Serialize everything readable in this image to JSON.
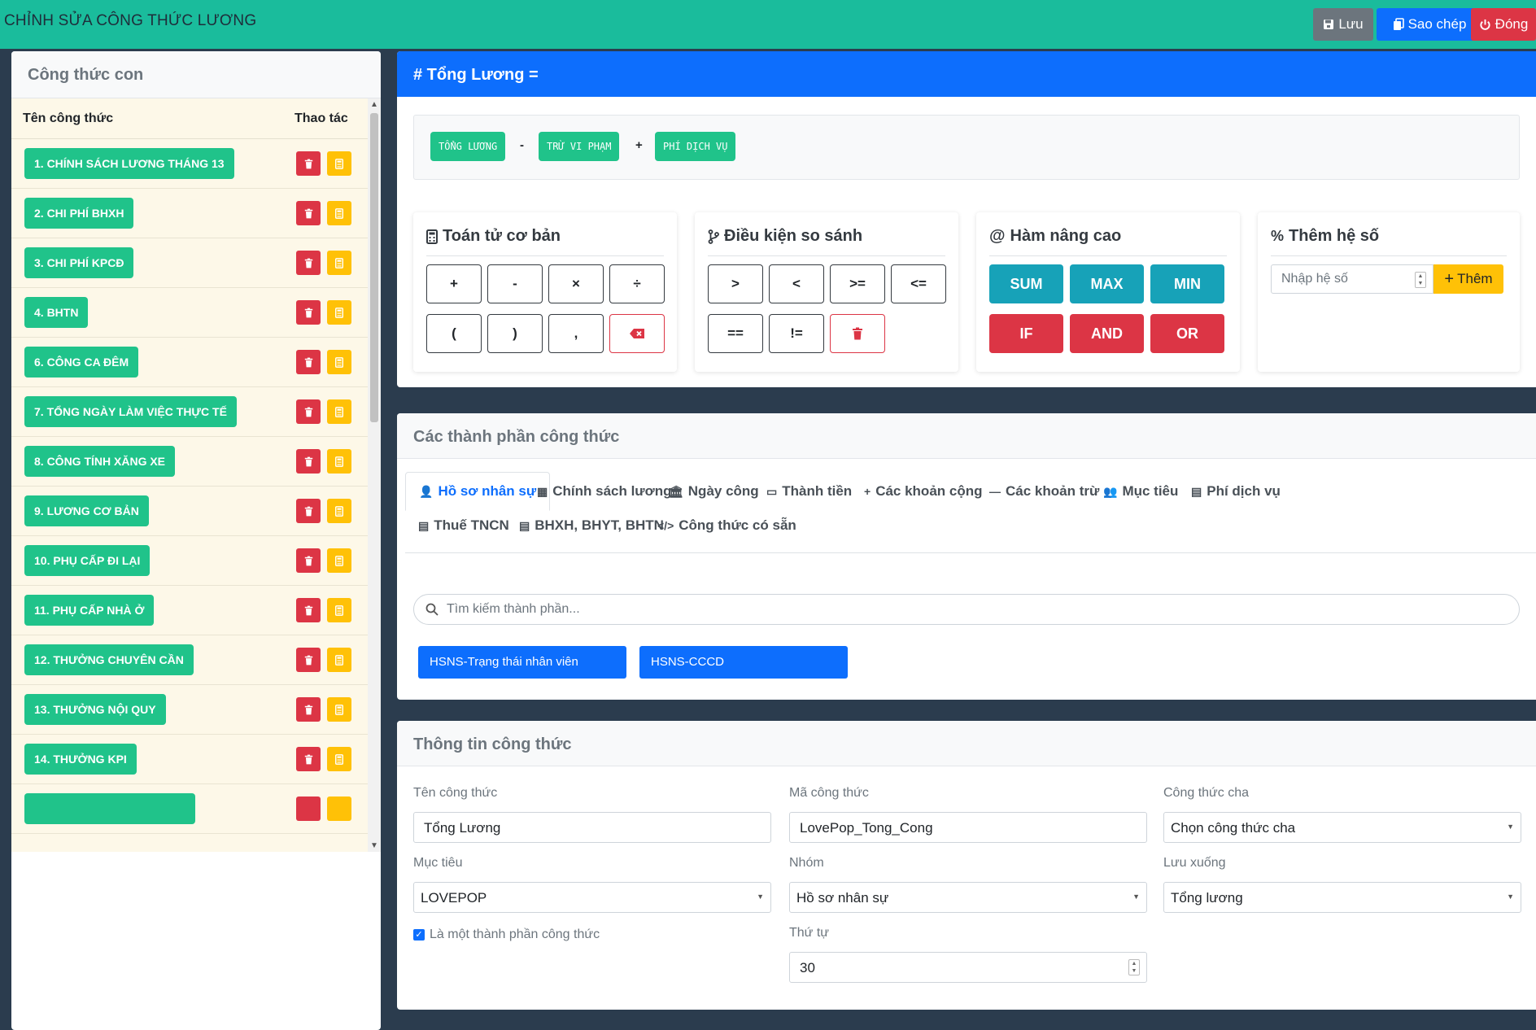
{
  "header": {
    "title": "CHỈNH SỬA CÔNG THỨC LƯƠNG",
    "save_label": "Lưu",
    "copy_label": "Sao chép",
    "close_label": "Đóng"
  },
  "sidebar": {
    "title": "Công thức con",
    "col_name": "Tên công thức",
    "col_actions": "Thao tác",
    "items": [
      {
        "label": "1. CHÍNH SÁCH LƯƠNG THÁNG 13"
      },
      {
        "label": "2. CHI PHÍ BHXH"
      },
      {
        "label": "3. CHI PHÍ KPCĐ"
      },
      {
        "label": "4. BHTN"
      },
      {
        "label": "6. CÔNG CA ĐÊM"
      },
      {
        "label": "7. TỔNG NGÀY LÀM VIỆC THỰC TẾ"
      },
      {
        "label": "8. CÔNG TÍNH XĂNG XE"
      },
      {
        "label": "9. LƯƠNG CƠ BẢN"
      },
      {
        "label": "10. PHỤ CẤP ĐI LẠI"
      },
      {
        "label": "11. PHỤ CẤP NHÀ Ở"
      },
      {
        "label": "12. THƯỞNG CHUYÊN CẦN"
      },
      {
        "label": "13. THƯỞNG NỘI QUY"
      },
      {
        "label": "14. THƯỞNG KPI"
      }
    ]
  },
  "formula": {
    "title": "# Tổng Lương =",
    "tokens": [
      "TỔNG LƯƠNG",
      "-",
      "TRỪ VI PHẠM",
      "+",
      "PHÍ DỊCH VỤ"
    ]
  },
  "tools": {
    "basic": {
      "title": "Toán tử cơ bản",
      "keys": [
        "+",
        "-",
        "×",
        "÷",
        "(",
        ")",
        ","
      ]
    },
    "compare": {
      "title": "Điều kiện so sánh",
      "keys": [
        ">",
        "<",
        ">=",
        "<=",
        "==",
        "!="
      ]
    },
    "advanced": {
      "title": "Hàm nâng cao",
      "keys": [
        "SUM",
        "MAX",
        "MIN",
        "IF",
        "AND",
        "OR"
      ]
    },
    "coef": {
      "title": "Thêm hệ số",
      "placeholder": "Nhập hệ số",
      "add_label": "Thêm"
    }
  },
  "components": {
    "title": "Các thành phần công thức",
    "tabs": [
      {
        "label": "Hồ sơ nhân sự",
        "icon": "user-icon"
      },
      {
        "label": "Chính sách lương",
        "icon": "building-icon"
      },
      {
        "label": "Ngày công",
        "icon": "bank-icon"
      },
      {
        "label": "Thành tiền",
        "icon": "money-icon"
      },
      {
        "label": "Các khoản cộng",
        "icon": "plus-icon"
      },
      {
        "label": "Các khoản trừ",
        "icon": "minus-icon"
      },
      {
        "label": "Mục tiêu",
        "icon": "users-icon"
      },
      {
        "label": "Phí dịch vụ",
        "icon": "calculator-icon"
      },
      {
        "label": "Thuế TNCN",
        "icon": "calculator-icon"
      },
      {
        "label": "BHXH, BHYT, BHTN",
        "icon": "calculator-icon"
      },
      {
        "label": "Công thức có sẵn",
        "icon": "code-icon"
      }
    ],
    "search_placeholder": "Tìm kiếm thành phần...",
    "chips": [
      "HSNS-Trạng thái nhân viên",
      "HSNS-CCCD"
    ]
  },
  "info": {
    "title": "Thông tin công thức",
    "name_label": "Tên công thức",
    "name_value": "Tổng Lương",
    "code_label": "Mã công thức",
    "code_value": "LovePop_Tong_Cong",
    "parent_label": "Công thức cha",
    "parent_value": "Chọn công thức cha",
    "target_label": "Mục tiêu",
    "target_value": "LOVEPOP",
    "group_label": "Nhóm",
    "group_value": "Hồ sơ nhân sự",
    "save_to_label": "Lưu xuống",
    "save_to_value": "Tổng lương",
    "is_component_label": "Là một thành phần công thức",
    "order_label": "Thứ tự",
    "order_value": "30"
  },
  "colors": {
    "topbar": "#1abc9c",
    "primary": "#0d6efd",
    "success": "#20c38a",
    "danger": "#dc3545",
    "warning": "#ffc107",
    "info": "#17a2b8",
    "background": "#2b3c4e"
  }
}
